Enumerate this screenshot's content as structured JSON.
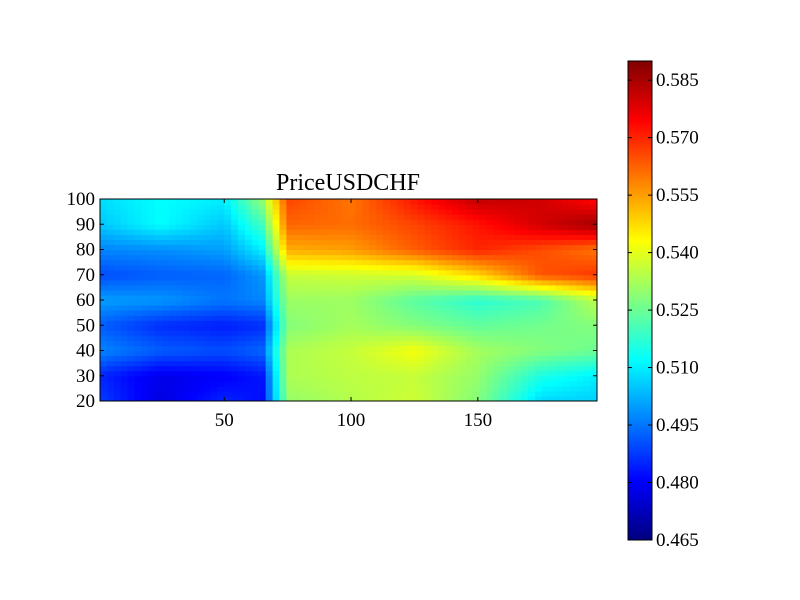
{
  "chart_data": {
    "type": "heatmap",
    "title": "PriceUSDCHF",
    "xlabel": "",
    "ylabel": "",
    "xlim": [
      1,
      197
    ],
    "ylim": [
      20,
      100
    ],
    "x_ticks": [
      50,
      100,
      150
    ],
    "x_tick_labels": [
      "50",
      "100",
      "150"
    ],
    "y_ticks": [
      20,
      30,
      40,
      50,
      60,
      70,
      80,
      90,
      100
    ],
    "y_tick_labels": [
      "20",
      "30",
      "40",
      "50",
      "60",
      "70",
      "80",
      "90",
      "100"
    ],
    "colormap": "jet",
    "colorbar": {
      "min": 0.465,
      "max": 0.59,
      "ticks": [
        0.465,
        0.48,
        0.495,
        0.51,
        0.525,
        0.54,
        0.555,
        0.57,
        0.585
      ],
      "tick_labels": [
        "0.465",
        "0.480",
        "0.495",
        "0.510",
        "0.525",
        "0.540",
        "0.555",
        "0.570",
        "0.585"
      ]
    },
    "x_sample": [
      1,
      25,
      50,
      65,
      75,
      100,
      125,
      150,
      175,
      197
    ],
    "y_sample": [
      20,
      30,
      40,
      50,
      60,
      70,
      80,
      90,
      100
    ],
    "values": [
      [
        0.488,
        0.477,
        0.485,
        0.482,
        0.53,
        0.534,
        0.537,
        0.528,
        0.507,
        0.506
      ],
      [
        0.485,
        0.478,
        0.48,
        0.483,
        0.533,
        0.535,
        0.536,
        0.53,
        0.515,
        0.51
      ],
      [
        0.497,
        0.492,
        0.49,
        0.493,
        0.533,
        0.536,
        0.542,
        0.532,
        0.528,
        0.525
      ],
      [
        0.492,
        0.486,
        0.484,
        0.486,
        0.528,
        0.532,
        0.528,
        0.524,
        0.526,
        0.528
      ],
      [
        0.5,
        0.499,
        0.495,
        0.497,
        0.531,
        0.531,
        0.523,
        0.517,
        0.521,
        0.535
      ],
      [
        0.49,
        0.492,
        0.493,
        0.499,
        0.536,
        0.537,
        0.538,
        0.548,
        0.564,
        0.568
      ],
      [
        0.497,
        0.498,
        0.5,
        0.51,
        0.553,
        0.555,
        0.563,
        0.57,
        0.565,
        0.56
      ],
      [
        0.505,
        0.512,
        0.505,
        0.52,
        0.562,
        0.561,
        0.566,
        0.572,
        0.58,
        0.586
      ],
      [
        0.508,
        0.512,
        0.51,
        0.53,
        0.566,
        0.56,
        0.572,
        0.582,
        0.58,
        0.573
      ]
    ]
  }
}
